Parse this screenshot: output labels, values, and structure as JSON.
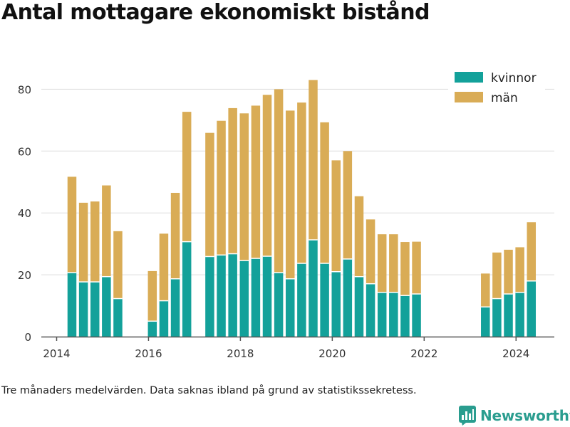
{
  "title": "Antal mottagare ekonomiskt bistånd",
  "footnote": "Tre månaders medelvärden. Data saknas ibland på grund av statistikssekretess.",
  "brand": "Newsworthy",
  "colors": {
    "kvinnor": "#13a19a",
    "man": "#d9ac56",
    "grid": "#dddddd",
    "axis": "#555555",
    "text": "#333333"
  },
  "chart_data": {
    "type": "bar",
    "stacked": true,
    "x_ticks": [
      "2014",
      "2016",
      "2018",
      "2020",
      "2022",
      "2024"
    ],
    "y_ticks": [
      "0",
      "20",
      "40",
      "60",
      "80"
    ],
    "xlim": [
      "2013-09",
      "2024-11"
    ],
    "ylim": [
      0,
      87
    ],
    "grid": true,
    "legend_position": "top-right",
    "periods": [
      "2014-05",
      "2014-08",
      "2014-11",
      "2015-02",
      "2015-05",
      "2015-08",
      "2015-11",
      "2016-02",
      "2016-05",
      "2016-08",
      "2016-11",
      "2017-02",
      "2017-05",
      "2017-08",
      "2017-11",
      "2018-02",
      "2018-05",
      "2018-08",
      "2018-11",
      "2019-02",
      "2019-05",
      "2019-08",
      "2019-11",
      "2020-02",
      "2020-05",
      "2020-08",
      "2020-11",
      "2021-02",
      "2021-05",
      "2021-08",
      "2021-11",
      "2022-02",
      "2022-05",
      "2022-08",
      "2022-11",
      "2023-02",
      "2023-05",
      "2023-08",
      "2023-11",
      "2024-02",
      "2024-05",
      "2024-08"
    ],
    "series": [
      {
        "name": "kvinnor",
        "values": [
          20.7,
          17.7,
          17.7,
          19.4,
          12.3,
          null,
          null,
          5.0,
          11.6,
          18.7,
          30.7,
          null,
          25.9,
          26.4,
          26.8,
          24.6,
          25.3,
          26.0,
          20.7,
          18.7,
          23.7,
          31.3,
          23.7,
          21.0,
          25.1,
          19.4,
          17.1,
          14.3,
          14.3,
          13.3,
          13.8,
          null,
          null,
          null,
          null,
          null,
          9.6,
          12.3,
          13.8,
          14.3,
          18.0,
          null
        ],
        "total_values_note": ""
      },
      {
        "name": "män",
        "values": [
          31.0,
          25.6,
          26.0,
          29.5,
          21.8,
          null,
          null,
          16.2,
          21.7,
          27.8,
          42.0,
          null,
          40.0,
          43.4,
          47.1,
          47.6,
          49.4,
          52.2,
          59.3,
          54.4,
          52.0,
          51.7,
          45.6,
          36.0,
          34.9,
          26.0,
          20.8,
          18.8,
          18.8,
          17.3,
          16.9,
          null,
          null,
          null,
          null,
          null,
          10.8,
          14.9,
          14.3,
          14.6,
          19.0,
          null
        ]
      }
    ]
  }
}
